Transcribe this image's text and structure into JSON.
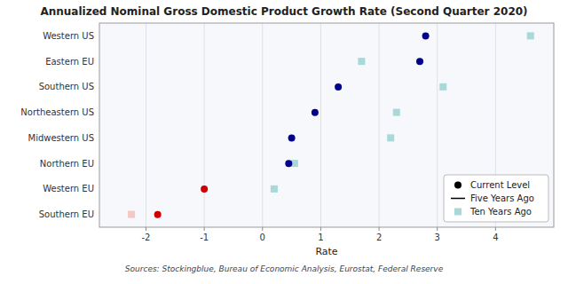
{
  "chart_data": {
    "type": "dot",
    "orientation": "horizontal",
    "title": "Annualized Nominal Gross Domestic Product Growth Rate (Second Quarter 2020)",
    "xlabel": "Rate",
    "annotations": [
      "Sources: Stockingblue, Bureau of Economic Analysis, Eurostat, Federal Reserve"
    ],
    "categories": [
      "Southern EU",
      "Western EU",
      "Northern EU",
      "Midwestern US",
      "Northeastern US",
      "Southern US",
      "Eastern EU",
      "Western US"
    ],
    "series": [
      {
        "name": "Current Level",
        "type": "dot",
        "marker": "circle",
        "color": "#000000",
        "colors": [
          "#cc0000",
          "#cc0000",
          "#00008B",
          "#00008B",
          "#00008B",
          "#00008B",
          "#00008B",
          "#00008B"
        ],
        "values": [
          -1.8,
          -1.0,
          0.45,
          0.5,
          0.9,
          1.3,
          2.7,
          2.8
        ]
      },
      {
        "name": "Five Years Ago",
        "type": "line",
        "color": "#000000",
        "values": [
          null,
          null,
          null,
          null,
          null,
          null,
          null,
          null
        ]
      },
      {
        "name": "Ten Years Ago",
        "type": "dot",
        "marker": "square",
        "color": "#a8d8d8",
        "colors": [
          "#f5c6c6",
          "#a8d8d8",
          "#a8d8d8",
          "#a8d8d8",
          "#a8d8d8",
          "#a8d8d8",
          "#a8d8d8",
          "#a8d8d8"
        ],
        "values": [
          -2.25,
          0.2,
          0.55,
          2.2,
          2.3,
          3.1,
          1.7,
          4.6
        ]
      }
    ],
    "xlim": [
      -2.8,
      5.0
    ],
    "xticks": [
      -2,
      -1,
      0,
      1,
      2,
      3,
      4
    ],
    "grid": true,
    "legend": "lower right"
  }
}
